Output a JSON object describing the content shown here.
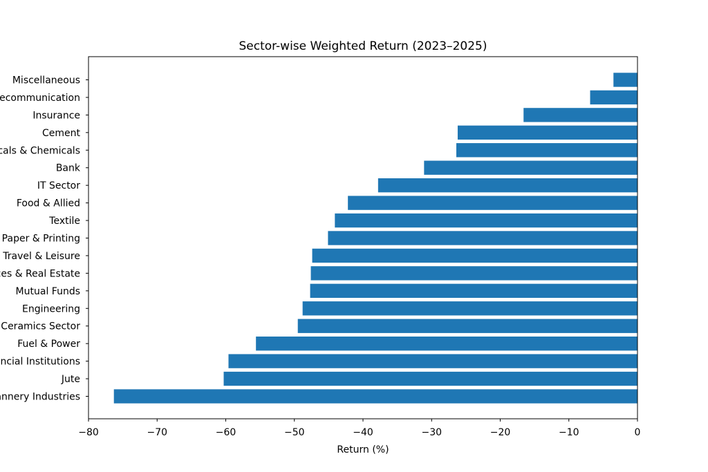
{
  "chart_data": {
    "type": "bar",
    "orientation": "horizontal",
    "title": "Sector-wise Weighted Return (2023–2025)",
    "xlabel": "Return (%)",
    "ylabel": "",
    "xlim": [
      -80,
      0
    ],
    "xticks": [
      -80,
      -70,
      -60,
      -50,
      -40,
      -30,
      -20,
      -10,
      0
    ],
    "xtick_labels": [
      "−80",
      "−70",
      "−60",
      "−50",
      "−40",
      "−30",
      "−20",
      "−10",
      "0"
    ],
    "grid": false,
    "bar_color": "#1f77b4",
    "categories": [
      "Miscellaneous",
      "Telecommunication",
      "Insurance",
      "Cement",
      "Pharmaceuticals & Chemicals",
      "Bank",
      "IT Sector",
      "Food & Allied",
      "Textile",
      "Paper & Printing",
      "Travel & Leisure",
      "Services & Real Estate",
      "Mutual Funds",
      "Engineering",
      "Ceramics Sector",
      "Fuel & Power",
      "Financial Institutions",
      "Jute",
      "Tannery Industries"
    ],
    "values": [
      -3.5,
      -6.9,
      -16.6,
      -26.2,
      -26.4,
      -31.1,
      -37.8,
      -42.2,
      -44.1,
      -45.1,
      -47.4,
      -47.6,
      -47.7,
      -48.8,
      -49.5,
      -55.6,
      -59.6,
      -60.3,
      -76.3
    ]
  }
}
